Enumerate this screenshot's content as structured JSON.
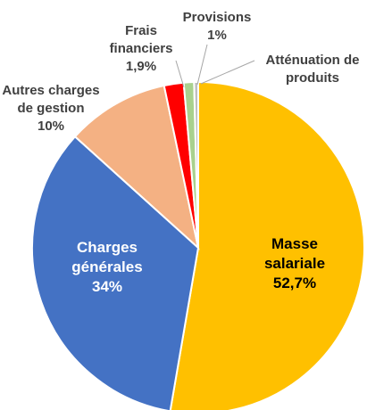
{
  "chart_data": {
    "type": "pie",
    "categories": [
      "Masse salariale",
      "Charges générales",
      "Autres charges de gestion",
      "Frais financiers",
      "Provisions",
      "Atténuation de produits"
    ],
    "values": [
      52.7,
      34,
      10,
      1.9,
      1,
      0.4
    ],
    "value_labels": [
      "52,7%",
      "34%",
      "10%",
      "1,9%",
      "1%",
      null
    ],
    "colors": [
      "#FFC000",
      "#4472C4",
      "#F4B183",
      "#FF0000",
      "#A9D18E",
      "#BFBFBF"
    ]
  }
}
